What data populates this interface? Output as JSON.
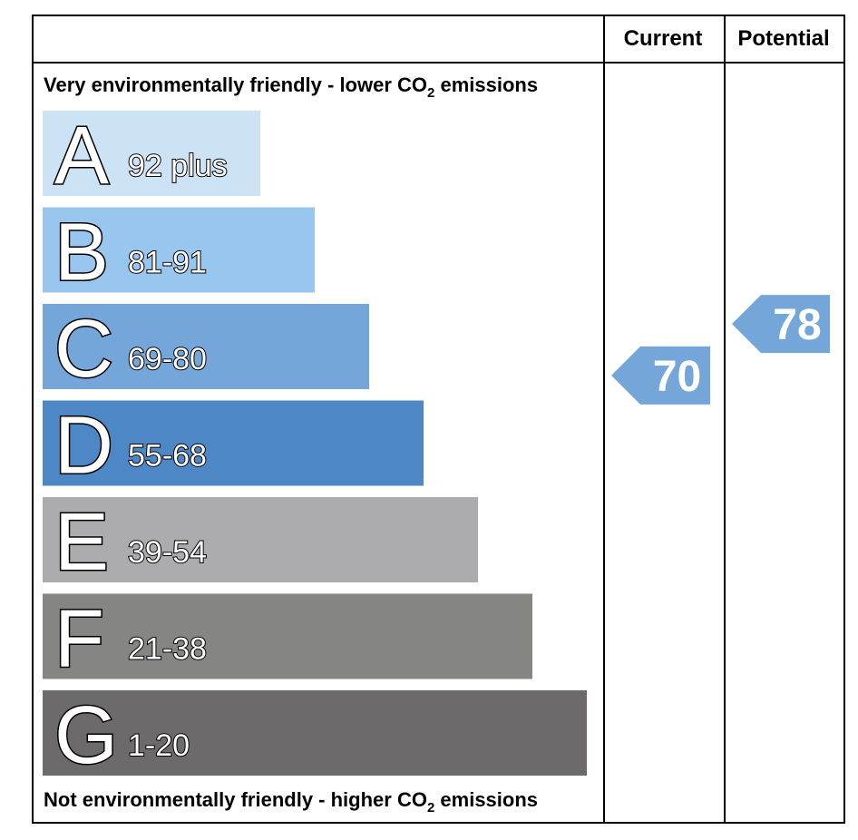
{
  "chart_data": {
    "type": "bar",
    "columns": {
      "current": "Current",
      "potential": "Potential"
    },
    "top_caption": {
      "text": "Very environmentally friendly - lower CO",
      "sub": "2",
      "suffix": " emissions"
    },
    "bottom_caption": {
      "text": "Not environmentally friendly - higher CO",
      "sub": "2",
      "suffix": " emissions"
    },
    "bands": [
      {
        "letter": "A",
        "range": "92 plus",
        "min": 92,
        "color": "#cce3f6"
      },
      {
        "letter": "B",
        "range": "81-91",
        "min": 81,
        "color": "#98c6ee"
      },
      {
        "letter": "C",
        "range": "69-80",
        "min": 69,
        "color": "#74a6da"
      },
      {
        "letter": "D",
        "range": "55-68",
        "min": 55,
        "color": "#4d87c6"
      },
      {
        "letter": "E",
        "range": "39-54",
        "min": 39,
        "color": "#acabad"
      },
      {
        "letter": "F",
        "range": "21-38",
        "min": 21,
        "color": "#858684"
      },
      {
        "letter": "G",
        "range": "1-20",
        "min": 1,
        "color": "#6c6a6b"
      }
    ],
    "current": {
      "value": 70,
      "color": "#74a6da"
    },
    "potential": {
      "value": 78,
      "color": "#74a6da"
    }
  }
}
